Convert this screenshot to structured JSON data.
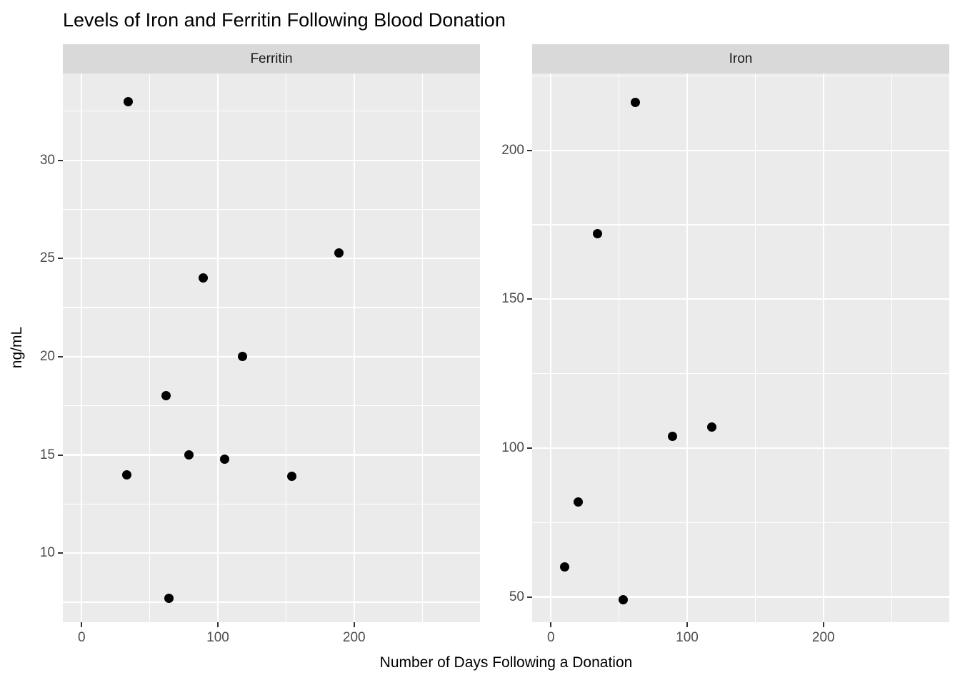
{
  "chart_data": {
    "type": "scatter",
    "title": "Levels of Iron and Ferritin Following Blood Donation",
    "xlabel": "Number of Days Following a Donation",
    "ylabel": "ng/mL",
    "grid": "on",
    "legend": "none",
    "point_color": "#000000",
    "facets": [
      {
        "label": "Ferritin",
        "xlim": [
          -13.8,
          292.4
        ],
        "ylim": [
          6.48,
          34.42
        ],
        "x_ticks": [
          0,
          100,
          200
        ],
        "y_ticks": [
          10,
          15,
          20,
          25,
          30
        ],
        "points": [
          {
            "x": 34,
            "y": 33
          },
          {
            "x": 189,
            "y": 25.3
          },
          {
            "x": 89,
            "y": 24
          },
          {
            "x": 118,
            "y": 20
          },
          {
            "x": 62,
            "y": 18
          },
          {
            "x": 79,
            "y": 15
          },
          {
            "x": 105,
            "y": 14.8
          },
          {
            "x": 33,
            "y": 14
          },
          {
            "x": 154,
            "y": 13.9
          },
          {
            "x": 64,
            "y": 7.7
          }
        ]
      },
      {
        "label": "Iron",
        "xlim": [
          -13.8,
          292.4
        ],
        "ylim": [
          41.5,
          225.8
        ],
        "x_ticks": [
          0,
          100,
          200
        ],
        "y_ticks": [
          50,
          100,
          150,
          200
        ],
        "points": [
          {
            "x": 62,
            "y": 216
          },
          {
            "x": 34,
            "y": 172
          },
          {
            "x": 89,
            "y": 104
          },
          {
            "x": 118,
            "y": 107
          },
          {
            "x": 20,
            "y": 82
          },
          {
            "x": 10,
            "y": 60
          },
          {
            "x": 53,
            "y": 49
          }
        ]
      }
    ],
    "colors": {
      "panel_bg": "#ebebeb",
      "strip_bg": "#d9d9d9",
      "grid": "#ffffff",
      "axis_text": "#4d4d4d",
      "strip_text": "#1a1a1a",
      "tick_mark": "#333333",
      "title_text": "#000000",
      "point": "#000000"
    }
  }
}
